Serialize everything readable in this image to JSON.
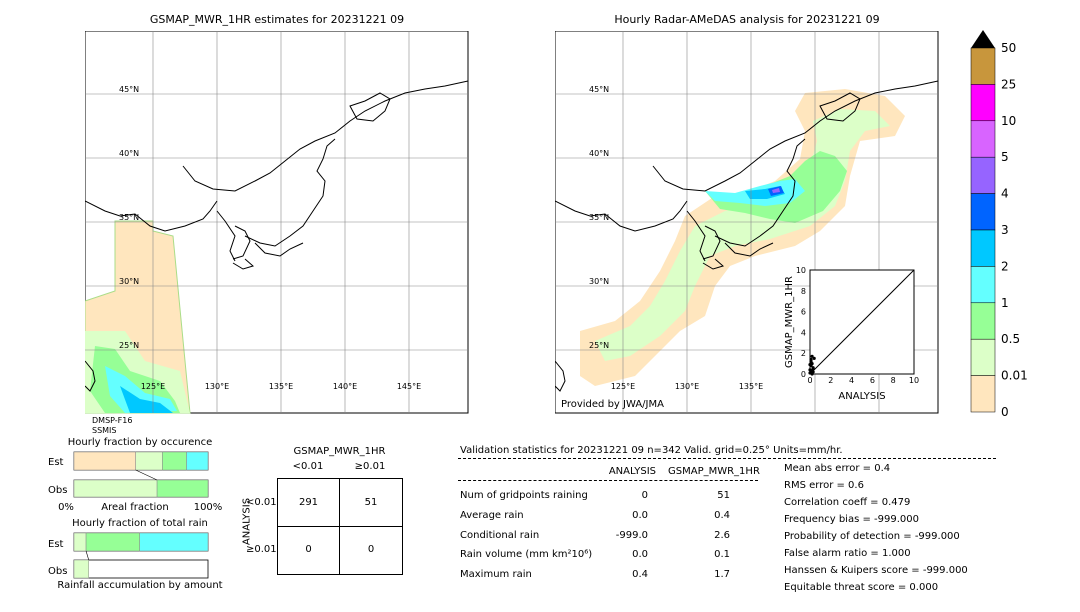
{
  "chart_data": [
    {
      "type": "heatmap",
      "title": "GSMAP_MWR_1HR estimates for 20231221 09",
      "lat_ticks": [
        "25°N",
        "30°N",
        "35°N",
        "40°N",
        "45°N"
      ],
      "lon_ticks": [
        "125°E",
        "130°E",
        "135°E",
        "140°E",
        "145°E"
      ],
      "satellite": "DMSP-F16",
      "sensor": "SSMIS"
    },
    {
      "type": "heatmap",
      "title": "Hourly Radar-AMeDAS analysis for 20231221 09",
      "lat_ticks": [
        "25°N",
        "30°N",
        "35°N",
        "40°N",
        "45°N"
      ],
      "lon_ticks": [
        "125°E",
        "130°E",
        "135°E"
      ],
      "credit": "Provided by JWA/JMA"
    },
    {
      "type": "scatter",
      "xlabel": "ANALYSIS",
      "ylabel": "GSMAP_MWR_1HR",
      "xlim": [
        0,
        10
      ],
      "ylim": [
        0,
        10
      ],
      "ticks": [
        "0",
        "2",
        "4",
        "6",
        "8",
        "10"
      ],
      "x": [
        0.1,
        0.2,
        0.3,
        0.1,
        0.2,
        0.1,
        0.4,
        0.2,
        0.1,
        0.3,
        0.0,
        0.0,
        0.1,
        0.2,
        0.0,
        0.3
      ],
      "y": [
        0.1,
        0.3,
        0.5,
        0.8,
        1.0,
        1.2,
        1.5,
        1.7,
        0.2,
        0.6,
        0.4,
        0.9,
        1.4,
        0.0,
        0.1,
        0.2
      ]
    },
    {
      "type": "bar",
      "title": "Hourly fraction by occurence",
      "categories": [
        "Est",
        "Obs"
      ],
      "xticks": [
        "0%",
        "Areal fraction",
        "100%"
      ],
      "series": [
        {
          "values": [
            0.46,
            0.0
          ]
        },
        {
          "values": [
            0.2,
            0.62
          ]
        },
        {
          "values": [
            0.18,
            0.38
          ]
        },
        {
          "values": [
            0.16,
            0.0
          ]
        }
      ]
    },
    {
      "type": "bar",
      "title": "Hourly fraction of total rain",
      "footer": "Rainfall accumulation by amount",
      "categories": [
        "Est",
        "Obs"
      ],
      "series": [
        {
          "values": [
            0.09,
            0.11
          ]
        },
        {
          "values": [
            0.4,
            0.0
          ]
        },
        {
          "values": [
            0.51,
            0.0
          ]
        }
      ]
    },
    {
      "type": "table",
      "title": "GSMAP_MWR_1HR",
      "col_labels": [
        "<0.01",
        "≥0.01"
      ],
      "row_labels": [
        "<0.01",
        "≥0.01"
      ],
      "side_label": "ANALYSIS",
      "cells": [
        [
          "291",
          "51"
        ],
        [
          "0",
          "0"
        ]
      ]
    }
  ],
  "colorbar": {
    "labels": [
      "50",
      "25",
      "10",
      "5",
      "4",
      "3",
      "2",
      "1",
      "0.5",
      "0.01",
      "0"
    ],
    "colors": [
      "#c8963c",
      "#ff00ff",
      "#d864ff",
      "#9664ff",
      "#0064ff",
      "#00c8ff",
      "#64ffff",
      "#96ff96",
      "#dcffc8",
      "#ffe6be"
    ]
  },
  "colors": {
    "light": "#dcffc8",
    "green": "#96ff96",
    "cyan": "#64ffff",
    "sky": "#00c8ff",
    "blue": "#0064ff",
    "purple": "#9664ff",
    "beige": "#ffe6be"
  },
  "validation": {
    "header": "Validation statistics for 20231221 09  n=342 Valid. grid=0.25° Units=mm/hr.",
    "col_analysis": "ANALYSIS",
    "col_gsmap": "GSMAP_MWR_1HR",
    "rows": [
      {
        "label": "Num of gridpoints raining",
        "a": "0",
        "g": "51"
      },
      {
        "label": "Average rain",
        "a": "0.0",
        "g": "0.4"
      },
      {
        "label": "Conditional rain",
        "a": "-999.0",
        "g": "2.6"
      },
      {
        "label": "Rain volume (mm km²10⁶)",
        "a": "0.0",
        "g": "0.1"
      },
      {
        "label": "Maximum rain",
        "a": "0.4",
        "g": "1.7"
      }
    ],
    "scores": [
      "Mean abs error =    0.4",
      "RMS error =    0.6",
      "Correlation coeff =  0.479",
      "Frequency bias = -999.000",
      "Probability of detection = -999.000",
      "False alarm ratio =  1.000",
      "Hanssen & Kuipers score = -999.000",
      "Equitable threat score =  0.000"
    ]
  }
}
